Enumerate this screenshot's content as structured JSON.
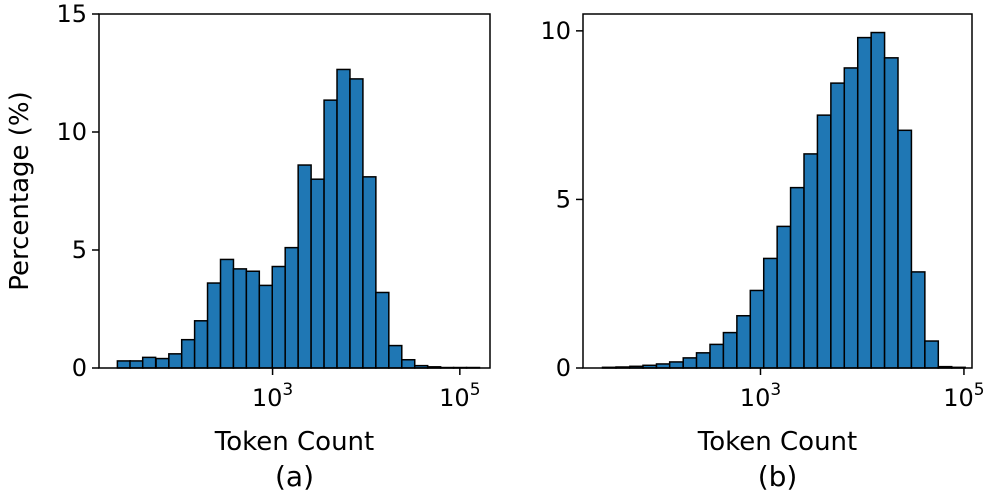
{
  "chart_data": [
    {
      "type": "bar",
      "caption": "(a)",
      "xlabel": "Token Count",
      "ylabel": "Percentage (%)",
      "xscale": "log",
      "xlim": [
        14,
        210000
      ],
      "ylim": [
        0,
        15
      ],
      "yticks": [
        0,
        5,
        10,
        15
      ],
      "xticks": [
        {
          "base": "10",
          "exp": "3",
          "value": 1000
        },
        {
          "base": "10",
          "exp": "5",
          "value": 100000
        }
      ],
      "bin_left_edges": [
        22,
        30,
        41,
        57,
        78,
        107,
        147,
        202,
        278,
        382,
        525,
        722,
        992,
        1364,
        1876,
        2580,
        3548,
        4879,
        6708,
        9224,
        12684,
        17443,
        23986,
        32984,
        45356,
        62373,
        85770,
        117943
      ],
      "bin_width_factor": 1.375,
      "values": [
        0.3,
        0.3,
        0.45,
        0.4,
        0.6,
        1.2,
        2.0,
        3.6,
        4.6,
        4.2,
        4.1,
        3.5,
        4.3,
        5.1,
        8.6,
        8.0,
        11.35,
        12.65,
        12.25,
        8.1,
        3.2,
        0.95,
        0.35,
        0.1,
        0.05,
        0.02,
        0.02,
        0.02
      ]
    },
    {
      "type": "bar",
      "caption": "(b)",
      "xlabel": "Token Count",
      "ylabel": "",
      "xscale": "log",
      "xlim": [
        18,
        120000
      ],
      "ylim": [
        0,
        10.5
      ],
      "yticks": [
        0,
        5,
        10
      ],
      "xticks": [
        {
          "base": "10",
          "exp": "3",
          "value": 1000
        },
        {
          "base": "10",
          "exp": "5",
          "value": 100000
        }
      ],
      "bin_left_edges": [
        28,
        38,
        52,
        70,
        95,
        128,
        174,
        235,
        319,
        432,
        586,
        794,
        1076,
        1458,
        1976,
        2678,
        3629,
        4919,
        6666,
        9034,
        12243,
        16591,
        22485,
        30471,
        41294,
        55962,
        75840
      ],
      "bin_width_factor": 1.355,
      "values": [
        0.02,
        0.03,
        0.05,
        0.08,
        0.12,
        0.18,
        0.3,
        0.45,
        0.7,
        1.05,
        1.55,
        2.3,
        3.25,
        4.2,
        5.35,
        6.35,
        7.5,
        8.45,
        8.9,
        9.8,
        9.95,
        9.2,
        7.05,
        2.85,
        0.8,
        0.04,
        0.02
      ]
    }
  ]
}
